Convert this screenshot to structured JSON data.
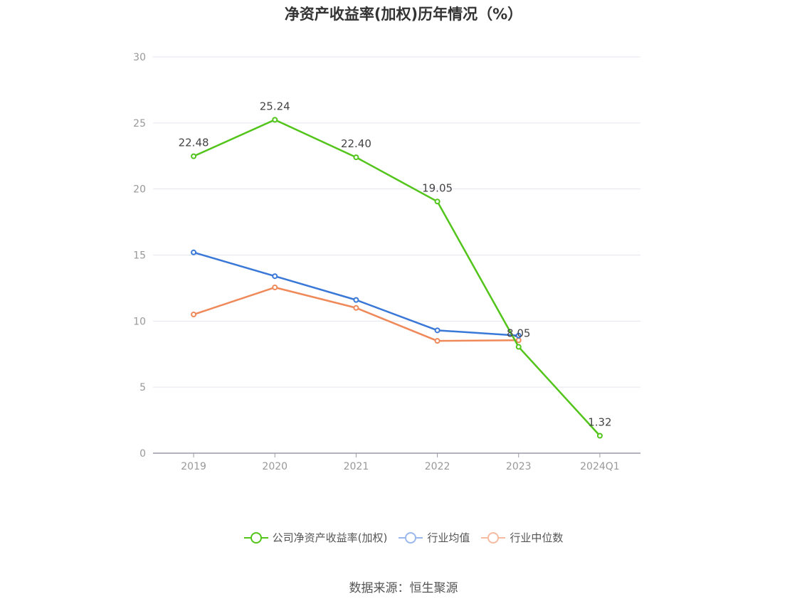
{
  "title": "净资产收益率(加权)历年情况（%）",
  "source": "数据来源：恒生聚源",
  "chart_data": {
    "type": "line",
    "title": "净资产收益率(加权)历年情况（%）",
    "categories": [
      "2019",
      "2020",
      "2021",
      "2022",
      "2023",
      "2024Q1"
    ],
    "ylim": [
      0,
      30
    ],
    "yticks": [
      0,
      5,
      10,
      15,
      20,
      25,
      30
    ],
    "grid": true,
    "legend_position": "bottom",
    "series": [
      {
        "name": "公司净资产收益率(加权)",
        "color": "#52c41a",
        "values": [
          22.48,
          25.24,
          22.4,
          19.05,
          8.05,
          1.32
        ],
        "labels": [
          "22.48",
          "25.24",
          "22.40",
          "19.05",
          "8.05",
          "1.32"
        ]
      },
      {
        "name": "行业均值",
        "color": "#3a78d8",
        "values": [
          15.2,
          13.4,
          11.6,
          9.3,
          8.9,
          null
        ]
      },
      {
        "name": "行业中位数",
        "color": "#f0895a",
        "values": [
          10.5,
          12.55,
          11.0,
          8.5,
          8.55,
          null
        ]
      }
    ]
  }
}
